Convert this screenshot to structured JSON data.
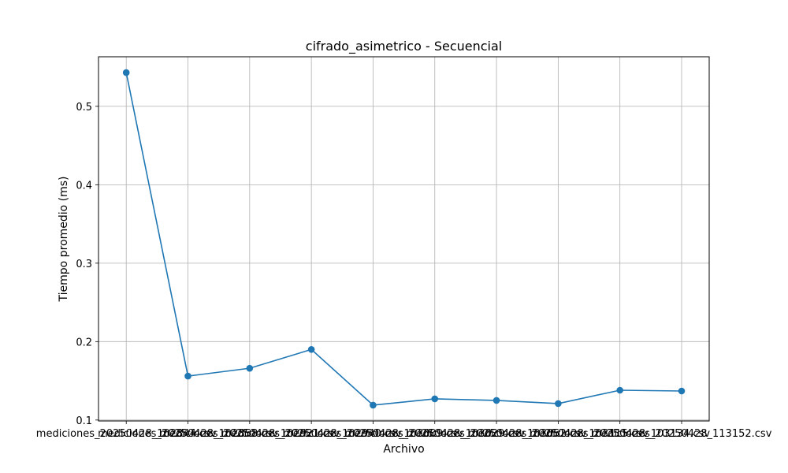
{
  "chart_data": {
    "type": "line",
    "title": "cifrado_asimetrico - Secuencial",
    "xlabel": "Archivo",
    "ylabel": "Tiempo promedio (ms)",
    "categories": [
      "mediciones_20250428_102844.csv",
      "mediciones_20250428_102858.csv",
      "mediciones_20250428_102921.csv",
      "mediciones_20250428_102940.csv",
      "mediciones_20250428_103009.csv",
      "mediciones_20250428_103029.csv",
      "mediciones_20250428_103052.csv",
      "mediciones_20250428_103115.csv",
      "mediciones_20250428_103134.csv",
      "mediciones_20250428_113152.csv"
    ],
    "values": [
      0.543,
      0.156,
      0.166,
      0.19,
      0.119,
      0.127,
      0.125,
      0.121,
      0.138,
      0.137
    ],
    "yticks": [
      0.1,
      0.2,
      0.3,
      0.4,
      0.5
    ],
    "ylim": [
      0.0988,
      0.5632
    ],
    "grid": true,
    "color": "#1f77b4"
  }
}
